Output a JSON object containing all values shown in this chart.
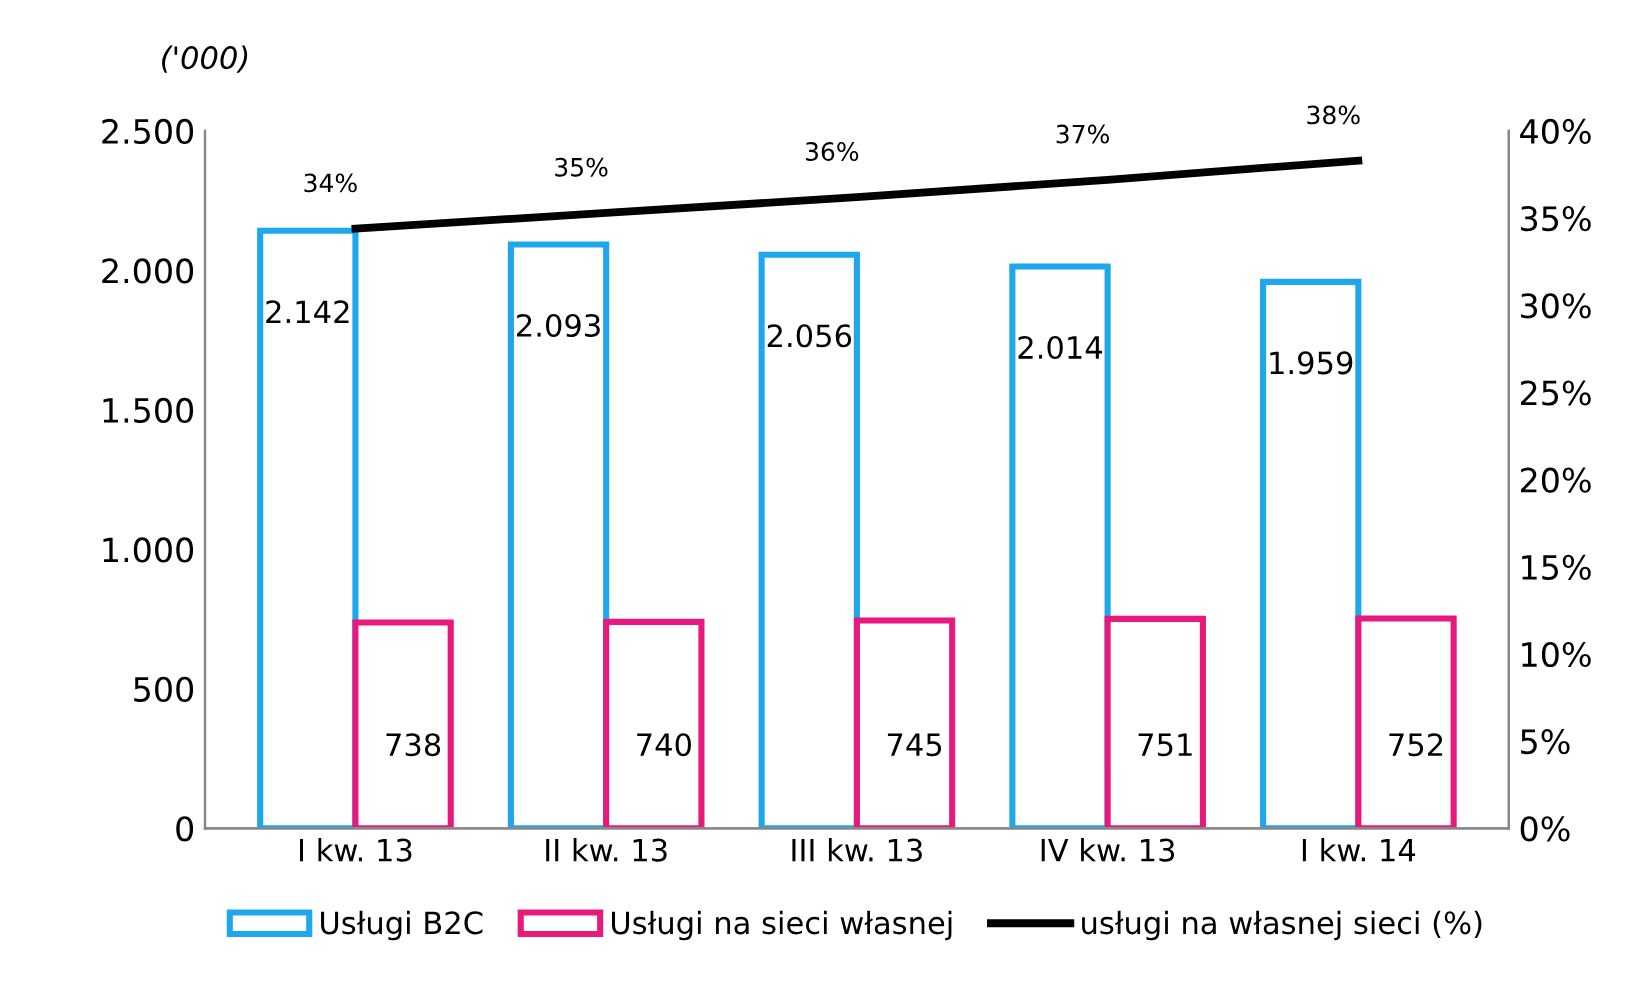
{
  "chart_data": {
    "type": "bar",
    "ylabel": "('000)",
    "categories": [
      "I kw. 13",
      "II kw. 13",
      "III kw. 13",
      "IV kw. 13",
      "I kw. 14"
    ],
    "series": [
      {
        "name": "Usługi B2C",
        "color": "#1ea7ec",
        "values": [
          2142,
          2093,
          2056,
          2014,
          1959
        ],
        "value_labels": [
          "2.142",
          "2.093",
          "2.056",
          "2.014",
          "1.959"
        ]
      },
      {
        "name": "Usługi na sieci własnej",
        "color": "#e8197d",
        "values": [
          738,
          740,
          745,
          751,
          752
        ],
        "value_labels": [
          "738",
          "740",
          "745",
          "751",
          "752"
        ]
      },
      {
        "name": "usługi na własnej sieci (%)",
        "type": "line",
        "axis": "y2",
        "color": "#000000",
        "values": [
          34.4,
          35.3,
          36.2,
          37.2,
          38.3
        ],
        "value_labels": [
          "34%",
          "35%",
          "36%",
          "37%",
          "38%"
        ]
      }
    ],
    "ylim": [
      0,
      2500
    ],
    "yticks": [
      0,
      500,
      {
        "value": 1000,
        "label": "1.000"
      },
      {
        "value": 1500,
        "label": "1.500"
      },
      {
        "value": 2000,
        "label": "2.000"
      },
      {
        "value": 2500,
        "label": "2.500"
      }
    ],
    "y2lim": [
      0,
      40
    ],
    "y2ticks": [
      {
        "value": 0,
        "label": "0%"
      },
      {
        "value": 5,
        "label": "5%"
      },
      {
        "value": 10,
        "label": "10%"
      },
      {
        "value": 15,
        "label": "15%"
      },
      {
        "value": 20,
        "label": "20%"
      },
      {
        "value": 25,
        "label": "25%"
      },
      {
        "value": 30,
        "label": "30%"
      },
      {
        "value": 35,
        "label": "35%"
      },
      {
        "value": 40,
        "label": "40%"
      }
    ],
    "grid": false,
    "legend": "bottom",
    "marker": "none"
  }
}
